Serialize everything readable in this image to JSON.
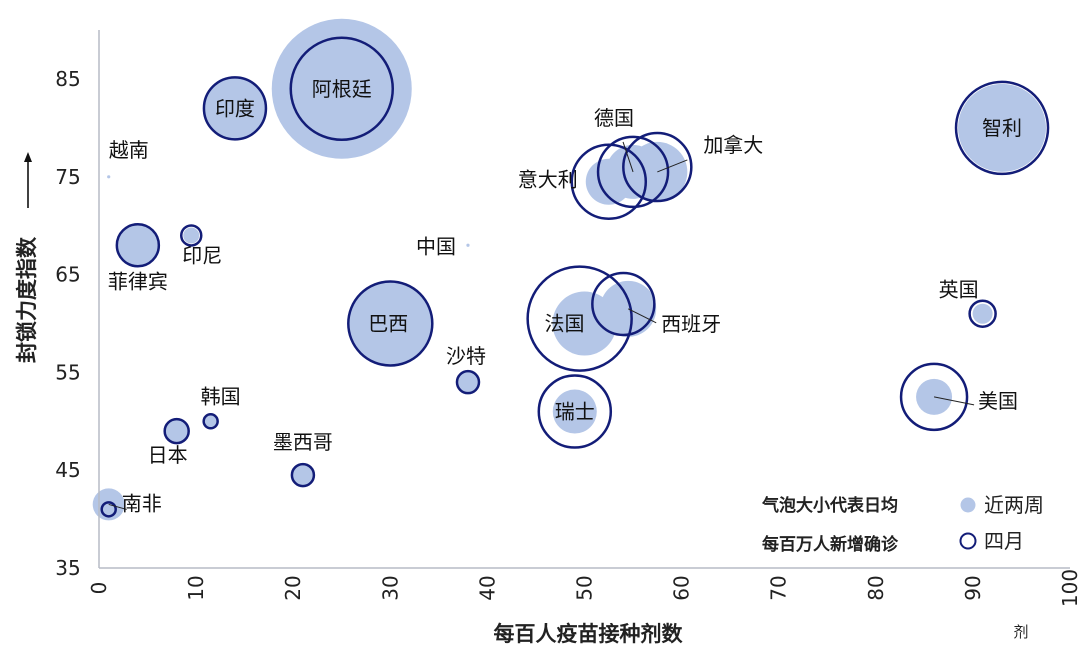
{
  "chart_data": {
    "type": "scatter",
    "title": "",
    "xlabel": "每百人疫苗接种剂数",
    "x_unit_note": "剂",
    "ylabel": "封锁力度指数",
    "xlim": [
      0,
      100
    ],
    "ylim": [
      35,
      90
    ],
    "x_ticks": [
      0,
      10,
      20,
      30,
      40,
      50,
      60,
      70,
      80,
      90,
      100
    ],
    "y_ticks": [
      35,
      45,
      55,
      65,
      75,
      85
    ],
    "grid": false,
    "legend": {
      "placement": "bottom-right",
      "title_line1": "气泡大小代表日均",
      "title_line2": "每百万人新增确诊",
      "entries": [
        "近两周",
        "四月"
      ]
    },
    "colors": {
      "fill": "#b4c6e7",
      "ring": "#131d78",
      "axis": "#b7bcc6"
    },
    "series": [
      {
        "name": "近两周",
        "style": "filled",
        "points": [
          {
            "label": "越南",
            "x": 1,
            "y": 75,
            "size": 0.3
          },
          {
            "label": "南非",
            "x": 1,
            "y": 41.5,
            "size": 16
          },
          {
            "label": "菲律宾",
            "x": 4,
            "y": 68,
            "size": 21
          },
          {
            "label": "印尼",
            "x": 9.5,
            "y": 69,
            "size": 8
          },
          {
            "label": "日本",
            "x": 8,
            "y": 49,
            "size": 13
          },
          {
            "label": "韩国",
            "x": 11.5,
            "y": 50,
            "size": 6
          },
          {
            "label": "印度",
            "x": 14,
            "y": 82,
            "size": 32
          },
          {
            "label": "墨西哥",
            "x": 21,
            "y": 44.5,
            "size": 11
          },
          {
            "label": "阿根廷",
            "x": 25,
            "y": 84,
            "size": 70
          },
          {
            "label": "巴西",
            "x": 30,
            "y": 60,
            "size": 42
          },
          {
            "label": "沙特",
            "x": 38,
            "y": 54,
            "size": 11
          },
          {
            "label": "中国",
            "x": 38,
            "y": 68,
            "size": 0.3
          },
          {
            "label": "法国",
            "x": 50,
            "y": 60,
            "size": 32
          },
          {
            "label": "瑞士",
            "x": 49,
            "y": 51,
            "size": 22
          },
          {
            "label": "西班牙",
            "x": 54.5,
            "y": 61.5,
            "size": 28
          },
          {
            "label": "意大利",
            "x": 52.5,
            "y": 74.5,
            "size": 23
          },
          {
            "label": "德国",
            "x": 55,
            "y": 75.5,
            "size": 27
          },
          {
            "label": "加拿大",
            "x": 57.5,
            "y": 75.5,
            "size": 30
          },
          {
            "label": "智利",
            "x": 93,
            "y": 80,
            "size": 44
          },
          {
            "label": "英国",
            "x": 91,
            "y": 61,
            "size": 10
          },
          {
            "label": "美国",
            "x": 86,
            "y": 52.5,
            "size": 18
          }
        ]
      },
      {
        "name": "四月",
        "style": "ring",
        "points": [
          {
            "label": "南非",
            "x": 1,
            "y": 41,
            "size": 7
          },
          {
            "label": "菲律宾",
            "x": 4,
            "y": 68,
            "size": 21
          },
          {
            "label": "印尼",
            "x": 9.5,
            "y": 69,
            "size": 10
          },
          {
            "label": "日本",
            "x": 8,
            "y": 49,
            "size": 12
          },
          {
            "label": "韩国",
            "x": 11.5,
            "y": 50,
            "size": 7
          },
          {
            "label": "印度",
            "x": 14,
            "y": 82,
            "size": 31
          },
          {
            "label": "墨西哥",
            "x": 21,
            "y": 44.5,
            "size": 11
          },
          {
            "label": "阿根廷",
            "x": 25,
            "y": 84,
            "size": 51
          },
          {
            "label": "巴西",
            "x": 30,
            "y": 60,
            "size": 42
          },
          {
            "label": "沙特",
            "x": 38,
            "y": 54,
            "size": 11
          },
          {
            "label": "法国",
            "x": 49.5,
            "y": 60.5,
            "size": 52
          },
          {
            "label": "瑞士",
            "x": 49,
            "y": 51,
            "size": 36
          },
          {
            "label": "西班牙",
            "x": 54,
            "y": 62,
            "size": 31
          },
          {
            "label": "意大利",
            "x": 52.5,
            "y": 74.5,
            "size": 37
          },
          {
            "label": "德国",
            "x": 55,
            "y": 75.5,
            "size": 35
          },
          {
            "label": "加拿大",
            "x": 57.5,
            "y": 76,
            "size": 34
          },
          {
            "label": "智利",
            "x": 93,
            "y": 80,
            "size": 46
          },
          {
            "label": "英国",
            "x": 91,
            "y": 61,
            "size": 13
          },
          {
            "label": "美国",
            "x": 86,
            "y": 52.5,
            "size": 33
          }
        ]
      }
    ]
  }
}
